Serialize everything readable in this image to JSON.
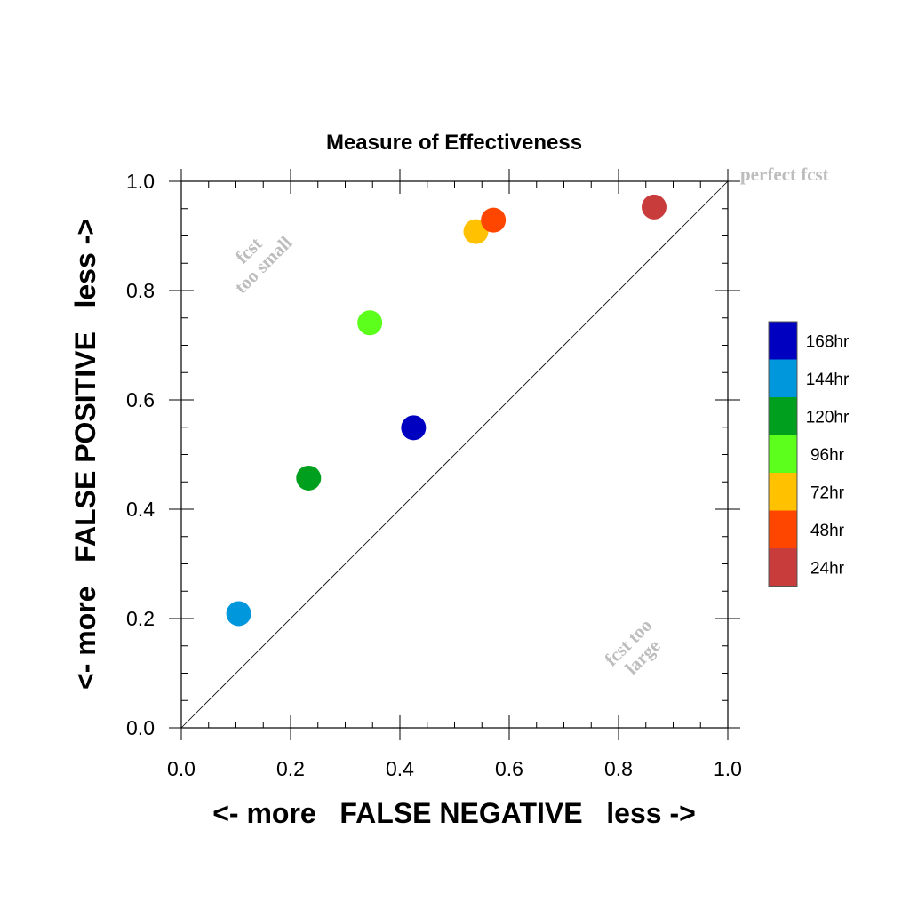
{
  "chart_data": {
    "type": "scatter",
    "title": "Measure of Effectiveness",
    "xlabel": "<- more   FALSE NEGATIVE   less ->",
    "ylabel": "<- more   FALSE POSITIVE   less ->",
    "xlim": [
      0.0,
      1.0
    ],
    "ylim": [
      0.0,
      1.0
    ],
    "xticks": [
      "0.0",
      "0.2",
      "0.4",
      "0.6",
      "0.8",
      "1.0"
    ],
    "yticks": [
      "0.0",
      "0.2",
      "0.4",
      "0.6",
      "0.8",
      "1.0"
    ],
    "grid": false,
    "legend_position": "right",
    "series": [
      {
        "name": "168hr",
        "color": "#0000c0",
        "x": 0.425,
        "y": 0.549
      },
      {
        "name": "144hr",
        "color": "#0097dc",
        "x": 0.105,
        "y": 0.209
      },
      {
        "name": "120hr",
        "color": "#00a01e",
        "x": 0.233,
        "y": 0.457
      },
      {
        "name": "96hr",
        "color": "#5bff1b",
        "x": 0.345,
        "y": 0.741
      },
      {
        "name": "72hr",
        "color": "#ffc100",
        "x": 0.539,
        "y": 0.908
      },
      {
        "name": "48hr",
        "color": "#ff4600",
        "x": 0.571,
        "y": 0.929
      },
      {
        "name": "24hr",
        "color": "#c83c3c",
        "x": 0.865,
        "y": 0.953
      }
    ],
    "reference_line": {
      "from": [
        0,
        0
      ],
      "to": [
        1,
        1
      ]
    },
    "annotations": {
      "perfect": "perfect fcst",
      "small_line1": "fcst",
      "small_line2": "too small",
      "large_line1": "fcst too",
      "large_line2": "large"
    }
  }
}
